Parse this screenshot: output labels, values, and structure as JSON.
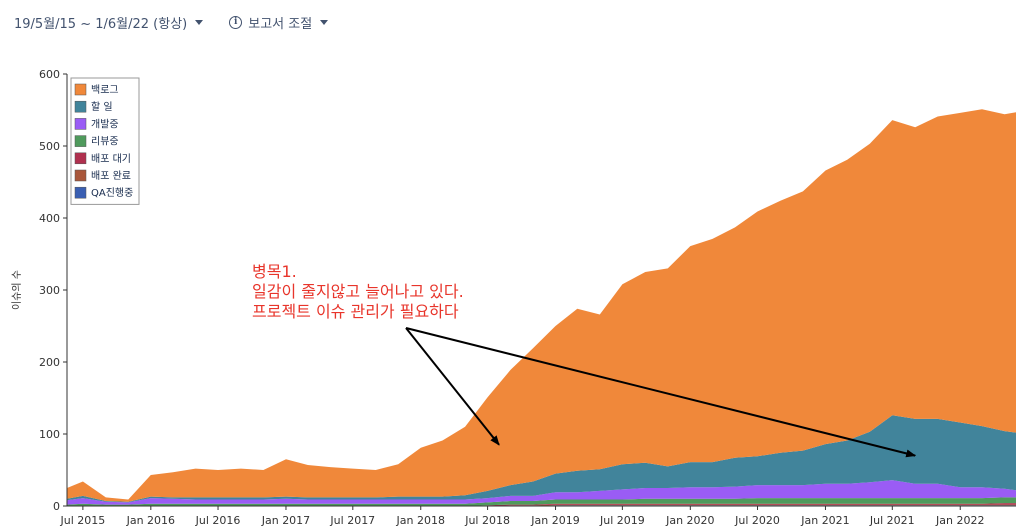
{
  "toolbar": {
    "date_range": "19/5월/15 ~ 1/6월/22 (항상)",
    "report_settings": "보고서 조절"
  },
  "colors": {
    "backlog": "#f0883a",
    "todo": "#41849b",
    "in_dev": "#9a5cf5",
    "review": "#4f9a5c",
    "deploy_wait": "#b0304e",
    "deploy_done": "#a9563a",
    "qa": "#3a5fb2"
  },
  "chart_data": {
    "type": "area",
    "stacked": true,
    "ylabel": "이슈의 수",
    "ylim": [
      0,
      600
    ],
    "yticks": [
      0,
      100,
      200,
      300,
      400,
      500,
      600
    ],
    "xticks": [
      "Jul 2015",
      "Jan 2016",
      "Jul 2016",
      "Jan 2017",
      "Jul 2017",
      "Jan 2018",
      "Jul 2018",
      "Jan 2019",
      "Jul 2019",
      "Jan 2020",
      "Jul 2020",
      "Jan 2021",
      "Jul 2021",
      "Jan 2022"
    ],
    "xlim": [
      "2015-05-19",
      "2022-06-01"
    ],
    "legend_position": "top-left",
    "grid": false,
    "x": [
      "2015-05-19",
      "2015-07-01",
      "2015-09-01",
      "2015-11-01",
      "2016-01-01",
      "2016-03-01",
      "2016-05-01",
      "2016-07-01",
      "2016-09-01",
      "2016-11-01",
      "2017-01-01",
      "2017-03-01",
      "2017-05-01",
      "2017-07-01",
      "2017-09-01",
      "2017-11-01",
      "2018-01-01",
      "2018-03-01",
      "2018-05-01",
      "2018-07-01",
      "2018-09-01",
      "2018-11-01",
      "2019-01-01",
      "2019-03-01",
      "2019-05-01",
      "2019-07-01",
      "2019-09-01",
      "2019-11-01",
      "2020-01-01",
      "2020-03-01",
      "2020-05-01",
      "2020-07-01",
      "2020-09-01",
      "2020-11-01",
      "2021-01-01",
      "2021-03-01",
      "2021-05-01",
      "2021-07-01",
      "2021-09-01",
      "2021-11-01",
      "2022-01-01",
      "2022-03-01",
      "2022-05-01",
      "2022-06-01"
    ],
    "series": [
      {
        "name": "백로그",
        "color_key": "backlog",
        "values": [
          15,
          20,
          5,
          3,
          30,
          35,
          40,
          38,
          40,
          38,
          52,
          45,
          42,
          40,
          38,
          45,
          68,
          78,
          95,
          130,
          160,
          185,
          205,
          225,
          215,
          250,
          265,
          275,
          300,
          310,
          320,
          340,
          350,
          360,
          380,
          390,
          400,
          410,
          405,
          420,
          430,
          440,
          440,
          445
        ]
      },
      {
        "name": "할 일",
        "color_key": "todo",
        "values": [
          2,
          3,
          1,
          1,
          2,
          2,
          3,
          3,
          3,
          3,
          3,
          3,
          3,
          3,
          3,
          4,
          4,
          4,
          6,
          10,
          15,
          20,
          26,
          30,
          30,
          35,
          35,
          30,
          35,
          35,
          40,
          40,
          45,
          48,
          55,
          60,
          70,
          90,
          90,
          90,
          90,
          85,
          80,
          80
        ]
      },
      {
        "name": "개발중",
        "color_key": "in_dev",
        "values": [
          6,
          8,
          4,
          3,
          8,
          7,
          6,
          6,
          6,
          6,
          7,
          6,
          6,
          6,
          6,
          6,
          6,
          6,
          6,
          6,
          7,
          7,
          10,
          10,
          12,
          14,
          15,
          15,
          16,
          16,
          17,
          18,
          18,
          18,
          20,
          20,
          22,
          25,
          20,
          20,
          15,
          15,
          12,
          10
        ]
      },
      {
        "name": "리뷰중",
        "color_key": "review",
        "values": [
          2,
          3,
          2,
          2,
          3,
          3,
          3,
          3,
          3,
          3,
          3,
          3,
          3,
          3,
          3,
          3,
          3,
          3,
          3,
          4,
          5,
          5,
          6,
          6,
          6,
          6,
          7,
          7,
          7,
          7,
          7,
          8,
          8,
          8,
          8,
          8,
          8,
          8,
          8,
          8,
          8,
          8,
          8,
          8
        ]
      },
      {
        "name": "배포 대기",
        "color_key": "deploy_wait",
        "values": [
          0,
          0,
          0,
          0,
          0,
          0,
          0,
          0,
          0,
          0,
          0,
          0,
          0,
          0,
          0,
          0,
          0,
          0,
          0,
          1,
          1,
          1,
          1,
          1,
          1,
          1,
          1,
          1,
          1,
          1,
          1,
          1,
          1,
          1,
          1,
          1,
          1,
          1,
          1,
          1,
          1,
          1,
          2,
          2
        ]
      },
      {
        "name": "배포 완료",
        "color_key": "deploy_done",
        "values": [
          0,
          0,
          0,
          0,
          0,
          0,
          0,
          0,
          0,
          0,
          0,
          0,
          0,
          0,
          0,
          0,
          0,
          0,
          0,
          0,
          1,
          1,
          1,
          1,
          1,
          1,
          1,
          1,
          1,
          1,
          1,
          1,
          1,
          1,
          1,
          1,
          1,
          1,
          1,
          1,
          1,
          1,
          1,
          1
        ]
      },
      {
        "name": "QA진행중",
        "color_key": "qa",
        "values": [
          0,
          0,
          0,
          0,
          0,
          0,
          0,
          0,
          0,
          0,
          0,
          0,
          0,
          0,
          0,
          0,
          0,
          0,
          0,
          0,
          0,
          0,
          1,
          1,
          1,
          1,
          1,
          1,
          1,
          1,
          1,
          1,
          1,
          1,
          1,
          1,
          1,
          1,
          1,
          1,
          1,
          1,
          1,
          1
        ]
      }
    ],
    "annotation": {
      "lines": [
        "병목1.",
        "일감이 줄지않고 늘어나고 있다.",
        "프로젝트 이슈 관리가 필요하다"
      ],
      "arrows_to": [
        {
          "date": "2018-08-01",
          "value": 85
        },
        {
          "date": "2021-09-01",
          "value": 70
        }
      ]
    }
  }
}
